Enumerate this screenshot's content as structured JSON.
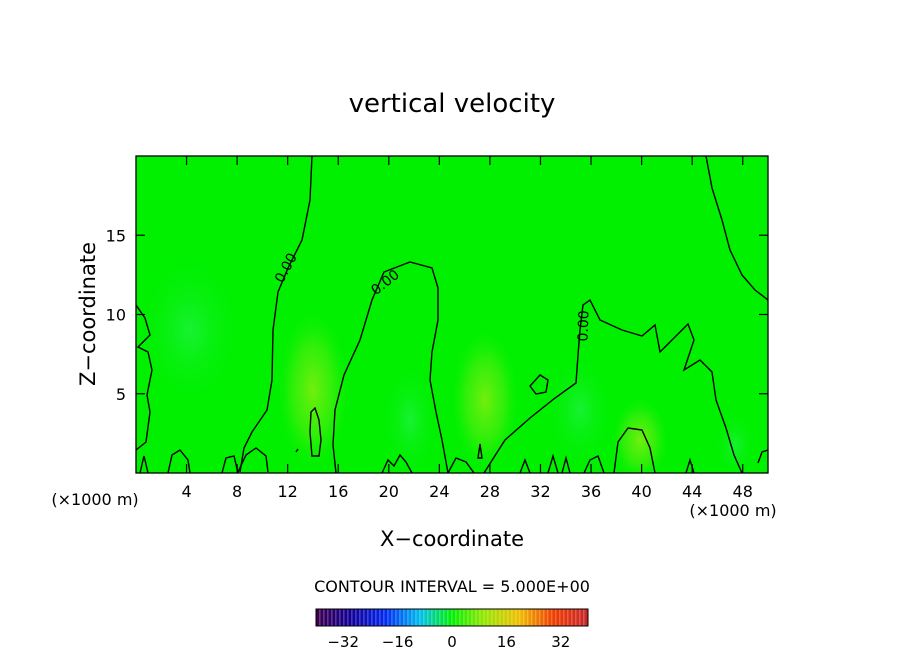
{
  "chart_data": {
    "type": "heatmap",
    "title": "vertical velocity",
    "xlabel": "X−coordinate",
    "ylabel": "Z−coordinate",
    "x_unit_left": "(×1000 m)",
    "x_unit_right": "(×1000 m)",
    "xlim": [
      0,
      50
    ],
    "ylim": [
      0,
      20
    ],
    "x_ticks": [
      4,
      8,
      12,
      16,
      20,
      24,
      28,
      32,
      36,
      40,
      44,
      48
    ],
    "y_ticks": [
      5,
      10,
      15
    ],
    "contour_interval_text": "CONTOUR INTERVAL = 5.000E+00",
    "contour_labels": [
      "0.00",
      "0.00",
      "0.00"
    ],
    "colorbar": {
      "ticks": [
        "−32",
        "−16",
        "0",
        "16",
        "32"
      ],
      "tick_values": [
        -32,
        -16,
        0,
        16,
        32
      ],
      "range": [
        -40,
        40
      ]
    },
    "colors": {
      "background": "#00f000",
      "contour": "#000000"
    }
  }
}
